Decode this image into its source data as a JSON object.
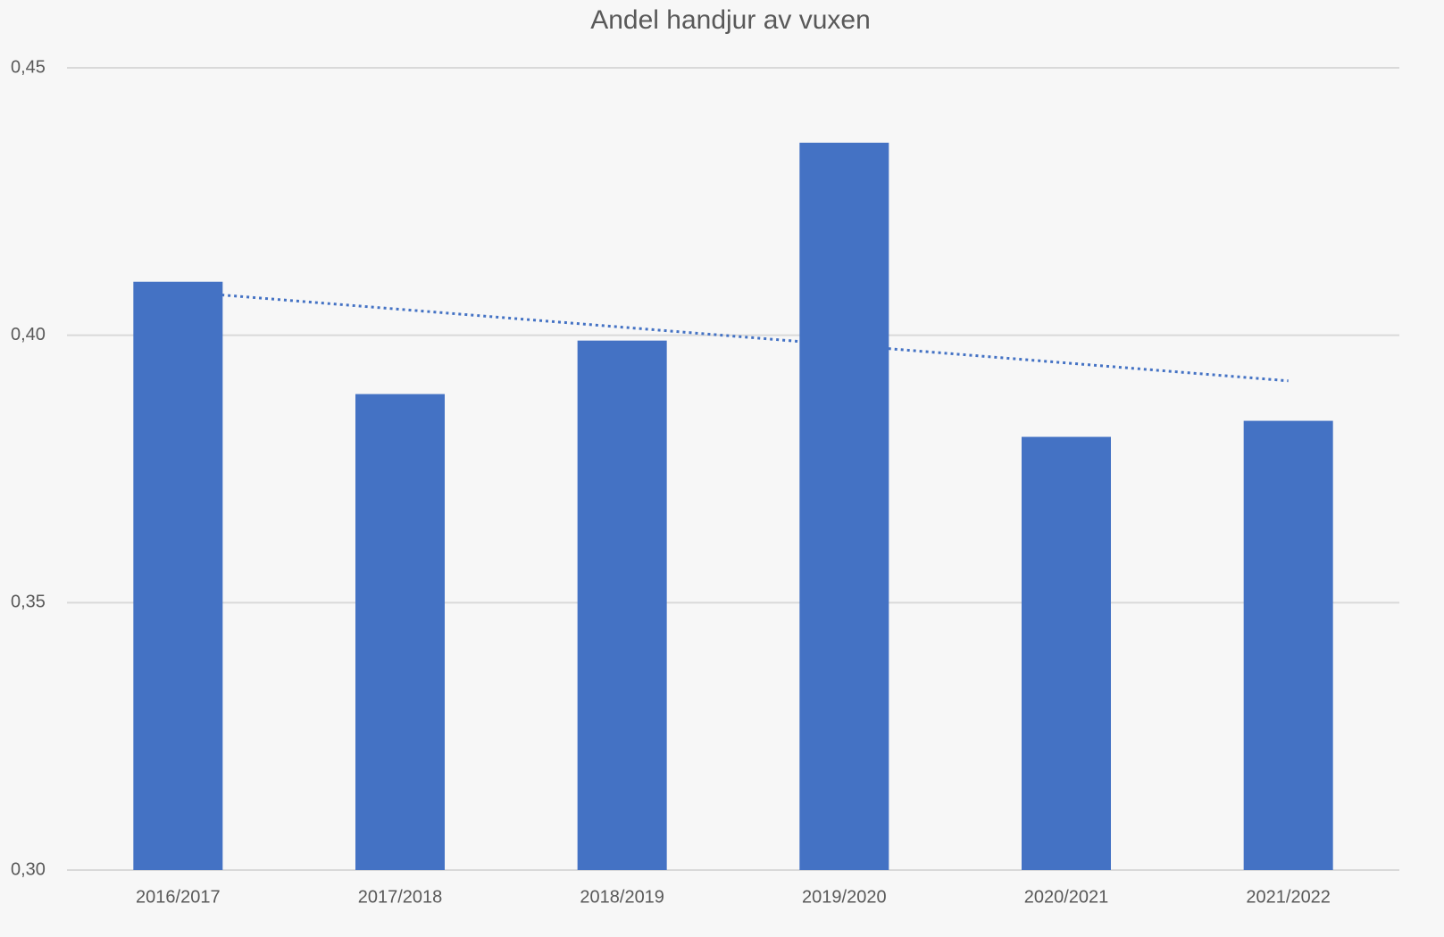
{
  "chart_data": {
    "type": "bar",
    "title": "Andel handjur av vuxen",
    "categories": [
      "2016/2017",
      "2017/2018",
      "2018/2019",
      "2019/2020",
      "2020/2021",
      "2021/2022"
    ],
    "values": [
      0.41,
      0.389,
      0.399,
      0.436,
      0.381,
      0.384
    ],
    "color": "#4472c4",
    "ylim": [
      0.3,
      0.45
    ],
    "yticks": [
      {
        "value": 0.3,
        "label": "0,30"
      },
      {
        "value": 0.35,
        "label": "0,35"
      },
      {
        "value": 0.4,
        "label": "0,40"
      },
      {
        "value": 0.45,
        "label": "0,45"
      }
    ],
    "grid": true,
    "trendline": "linear"
  }
}
